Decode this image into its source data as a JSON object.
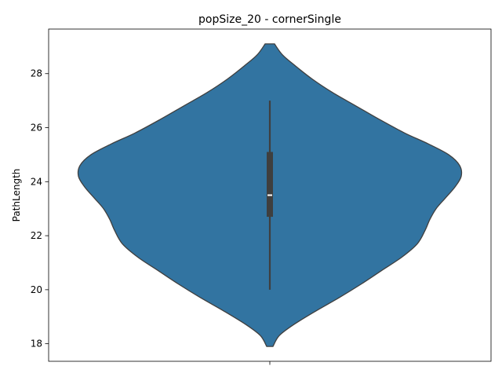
{
  "chart_data": {
    "type": "violin",
    "title": "popSize_20 - cornerSingle",
    "xlabel": "",
    "ylabel": "PathLength",
    "ylim": [
      17.35,
      29.65
    ],
    "yticks": [
      18,
      20,
      22,
      24,
      26,
      28
    ],
    "grid": false,
    "color": "#3274a1",
    "edge_color": "#3f3f3f",
    "violin": {
      "density_profile": [
        {
          "y": 17.9,
          "w": 0.02
        },
        {
          "y": 18.3,
          "w": 0.06
        },
        {
          "y": 18.7,
          "w": 0.15
        },
        {
          "y": 19.2,
          "w": 0.29
        },
        {
          "y": 19.7,
          "w": 0.44
        },
        {
          "y": 20.2,
          "w": 0.58
        },
        {
          "y": 20.7,
          "w": 0.71
        },
        {
          "y": 21.2,
          "w": 0.84
        },
        {
          "y": 21.7,
          "w": 0.94
        },
        {
          "y": 22.2,
          "w": 0.99
        },
        {
          "y": 22.6,
          "w": 1.02
        },
        {
          "y": 23.0,
          "w": 1.06
        },
        {
          "y": 23.4,
          "w": 1.12
        },
        {
          "y": 23.8,
          "w": 1.18
        },
        {
          "y": 24.2,
          "w": 1.22
        },
        {
          "y": 24.6,
          "w": 1.21
        },
        {
          "y": 25.0,
          "w": 1.14
        },
        {
          "y": 25.4,
          "w": 1.01
        },
        {
          "y": 25.8,
          "w": 0.86
        },
        {
          "y": 26.3,
          "w": 0.7
        },
        {
          "y": 26.8,
          "w": 0.55
        },
        {
          "y": 27.3,
          "w": 0.4
        },
        {
          "y": 27.8,
          "w": 0.27
        },
        {
          "y": 28.3,
          "w": 0.16
        },
        {
          "y": 28.7,
          "w": 0.08
        },
        {
          "y": 29.1,
          "w": 0.03
        }
      ],
      "box": {
        "whisker_low": 20.0,
        "q1": 22.7,
        "median": 23.5,
        "q3": 25.1,
        "whisker_high": 27.0
      }
    }
  }
}
